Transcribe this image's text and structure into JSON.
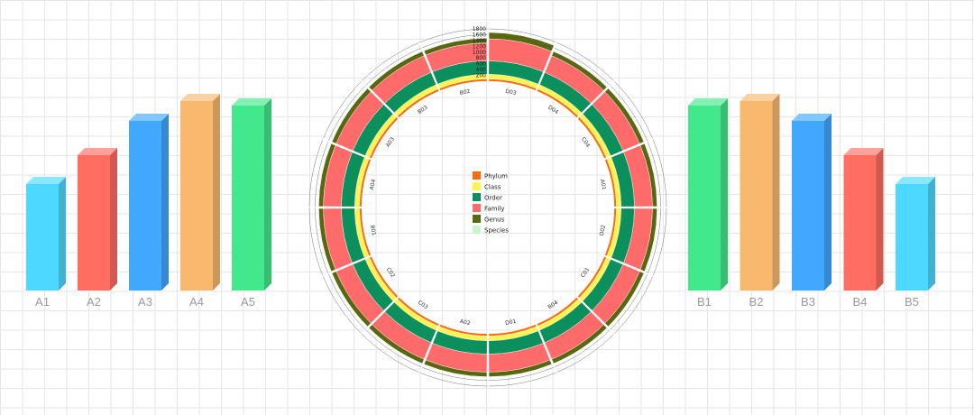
{
  "chart_data": [
    {
      "type": "bar",
      "categories": [
        "A1",
        "A2",
        "A3",
        "A4",
        "A5"
      ],
      "values": [
        118,
        150,
        188,
        210,
        205
      ],
      "colors": [
        "#4dd9ff",
        "#ff6e61",
        "#41a8ff",
        "#f8b86e",
        "#42e88c"
      ]
    },
    {
      "type": "bar",
      "categories": [
        "B1",
        "B2",
        "B3",
        "B4",
        "B5"
      ],
      "values": [
        205,
        210,
        188,
        150,
        118
      ],
      "colors": [
        "#42e88c",
        "#f8b86e",
        "#41a8ff",
        "#ff6e61",
        "#4dd9ff"
      ]
    },
    {
      "type": "radial-stacked-bar",
      "categories": [
        "D03",
        "D04",
        "C04",
        "A01",
        "D02",
        "C01",
        "B04",
        "D01",
        "A02",
        "C03",
        "C02",
        "B01",
        "A04",
        "A03",
        "B03",
        "B02"
      ],
      "radial_ticks": [
        "200",
        "400",
        "600",
        "800",
        "1000",
        "1200",
        "1400",
        "1600",
        "1800"
      ],
      "rmax": 1800,
      "series": [
        {
          "name": "Phylum",
          "color": "#f96d0c",
          "values": [
            80,
            80,
            80,
            80,
            80,
            80,
            80,
            80,
            80,
            80,
            80,
            80,
            80,
            80,
            80,
            80
          ]
        },
        {
          "name": "Class",
          "color": "#fff451",
          "values": [
            160,
            160,
            160,
            160,
            160,
            160,
            160,
            160,
            160,
            160,
            160,
            160,
            160,
            160,
            160,
            160
          ]
        },
        {
          "name": "Order",
          "color": "#0b8f5c",
          "values": [
            460,
            460,
            460,
            460,
            460,
            460,
            460,
            460,
            460,
            460,
            460,
            460,
            460,
            460,
            460,
            460
          ]
        },
        {
          "name": "Family",
          "color": "#ff6b6b",
          "values": [
            760,
            620,
            620,
            620,
            620,
            620,
            620,
            620,
            620,
            620,
            620,
            620,
            620,
            620,
            620,
            620
          ]
        },
        {
          "name": "Genus",
          "color": "#5a6610",
          "values": [
            220,
            160,
            160,
            160,
            160,
            160,
            160,
            160,
            160,
            160,
            160,
            160,
            160,
            160,
            160,
            160
          ]
        },
        {
          "name": "Species",
          "color": "#c8f5d0",
          "values": [
            20,
            20,
            20,
            20,
            20,
            20,
            20,
            20,
            20,
            20,
            20,
            20,
            20,
            20,
            20,
            20
          ]
        }
      ],
      "legend_position": "center"
    }
  ]
}
